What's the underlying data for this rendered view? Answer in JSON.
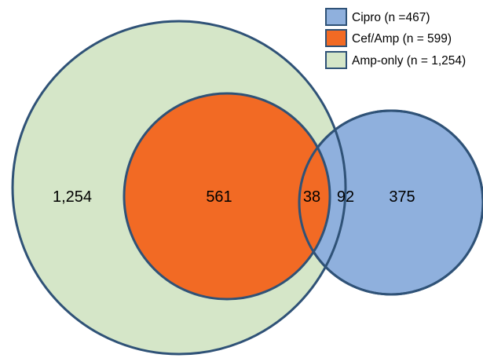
{
  "legend": [
    {
      "label": "Cipro (n =467)",
      "color": "#8fb0dd"
    },
    {
      "label": "Cef/Amp (n = 599)",
      "color": "#f26a24"
    },
    {
      "label": "Amp-only (n = 1,254)",
      "color": "#d5e6c8"
    }
  ],
  "regions": {
    "amp_only": "1,254",
    "cef_amp_only": "561",
    "cef_amp_cipro": "38",
    "amp_cipro": "92",
    "cipro_only": "375"
  },
  "colors": {
    "amp_fill": "#d5e6c8",
    "cef_fill": "#f26a24",
    "cipro_fill": "#8fb0dd",
    "stroke": "#2f5277"
  }
}
